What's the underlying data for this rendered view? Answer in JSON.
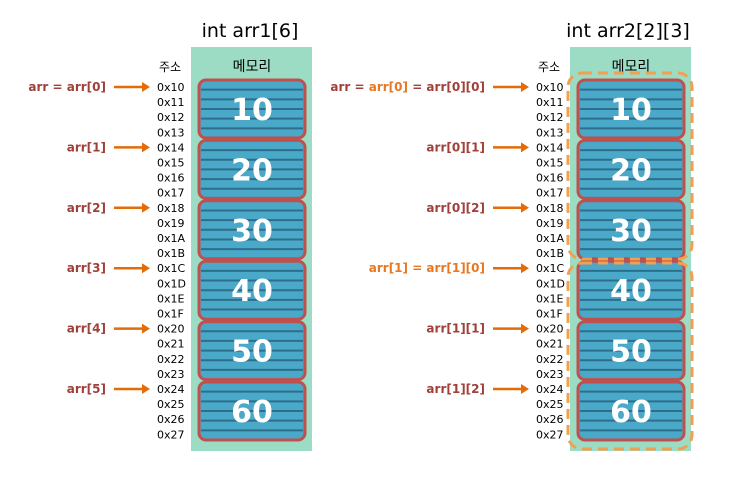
{
  "left": {
    "title": "int arr1[6]",
    "address_header": "주소",
    "memory_header": "메모리",
    "addresses": [
      "0x10",
      "0x11",
      "0x12",
      "0x13",
      "0x14",
      "0x15",
      "0x16",
      "0x17",
      "0x18",
      "0x19",
      "0x1A",
      "0x1B",
      "0x1C",
      "0x1D",
      "0x1E",
      "0x1F",
      "0x20",
      "0x21",
      "0x22",
      "0x23",
      "0x24",
      "0x25",
      "0x26",
      "0x27"
    ],
    "values": [
      "10",
      "20",
      "30",
      "40",
      "50",
      "60"
    ],
    "pointers": [
      {
        "parts": [
          {
            "text": "arr = arr[0]",
            "color": "#a0403a"
          }
        ]
      },
      {
        "parts": [
          {
            "text": "arr[1]",
            "color": "#a0403a"
          }
        ]
      },
      {
        "parts": [
          {
            "text": "arr[2]",
            "color": "#a0403a"
          }
        ]
      },
      {
        "parts": [
          {
            "text": "arr[3]",
            "color": "#a0403a"
          }
        ]
      },
      {
        "parts": [
          {
            "text": "arr[4]",
            "color": "#a0403a"
          }
        ]
      },
      {
        "parts": [
          {
            "text": "arr[5]",
            "color": "#a0403a"
          }
        ]
      }
    ]
  },
  "right": {
    "title": "int arr2[2][3]",
    "address_header": "주소",
    "memory_header": "메모리",
    "addresses": [
      "0x10",
      "0x11",
      "0x12",
      "0x13",
      "0x14",
      "0x15",
      "0x16",
      "0x17",
      "0x18",
      "0x19",
      "0x1A",
      "0x1B",
      "0x1C",
      "0x1D",
      "0x1E",
      "0x1F",
      "0x20",
      "0x21",
      "0x22",
      "0x23",
      "0x24",
      "0x25",
      "0x26",
      "0x27"
    ],
    "values": [
      "10",
      "20",
      "30",
      "40",
      "50",
      "60"
    ],
    "pointers": [
      {
        "parts": [
          {
            "text": "arr = ",
            "color": "#a0403a"
          },
          {
            "text": "arr[0]",
            "color": "#e87722"
          },
          {
            "text": " = arr[0][0]",
            "color": "#a0403a"
          }
        ]
      },
      {
        "parts": [
          {
            "text": "arr[0][1]",
            "color": "#a0403a"
          }
        ]
      },
      {
        "parts": [
          {
            "text": "arr[0][2]",
            "color": "#a0403a"
          }
        ]
      },
      {
        "parts": [
          {
            "text": "arr[1] = arr[1][0]",
            "color": "#e87722"
          }
        ]
      },
      {
        "parts": [
          {
            "text": "arr[1][1]",
            "color": "#a0403a"
          }
        ]
      },
      {
        "parts": [
          {
            "text": "arr[1][2]",
            "color": "#a0403a"
          }
        ]
      }
    ]
  },
  "colors": {
    "column_bg": "#9ddcc4",
    "cell_fill": "#4aa8c8",
    "cell_line": "#2e6e8a",
    "cell_border": "#c0504d",
    "arrow": "#e36c09",
    "group_dash": "#f0a050",
    "value_text": "#ffffff"
  }
}
